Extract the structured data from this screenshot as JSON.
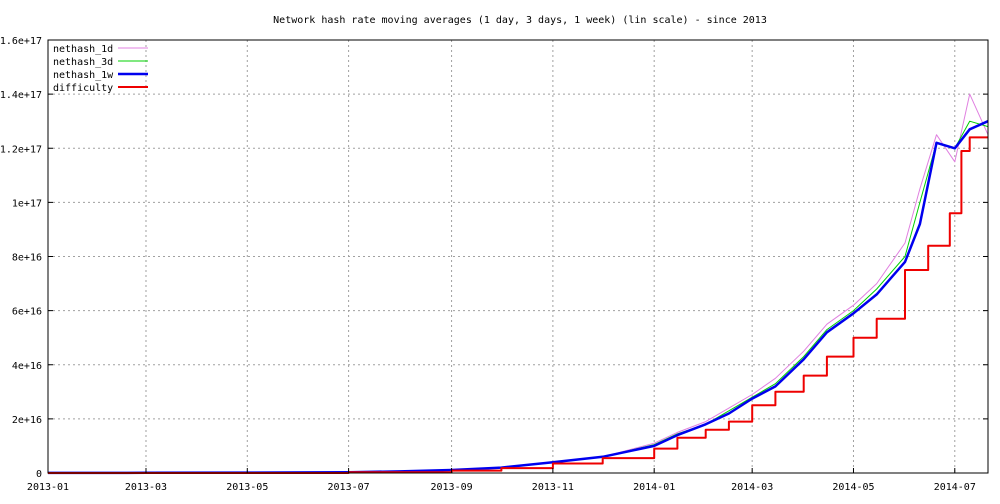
{
  "chart_data": {
    "type": "line",
    "title": "Network hash rate moving averages (1 day, 3 days, 1 week) (lin scale) - since 2013",
    "xlabel": "",
    "ylabel": "",
    "x_ticks": [
      "2013-01",
      "2013-03",
      "2013-05",
      "2013-07",
      "2013-09",
      "2013-11",
      "2014-01",
      "2014-03",
      "2014-05",
      "2014-07"
    ],
    "xlim": [
      "2013-01-01",
      "2014-07-21"
    ],
    "y_ticks": [
      "0",
      "2e+16",
      "4e+16",
      "6e+16",
      "8e+16",
      "1e+17",
      "1.2e+17",
      "1.4e+17",
      "1.6e+17"
    ],
    "ylim": [
      0,
      1.6e+17
    ],
    "grid": true,
    "legend_position": "top-left",
    "series": [
      {
        "name": "nethash_1d",
        "color": "#e080e0",
        "x": [
          "2013-01-01",
          "2013-03-01",
          "2013-05-01",
          "2013-07-01",
          "2013-08-01",
          "2013-09-01",
          "2013-10-01",
          "2013-11-01",
          "2013-12-01",
          "2014-01-01",
          "2014-01-15",
          "2014-02-01",
          "2014-02-15",
          "2014-03-01",
          "2014-03-15",
          "2014-04-01",
          "2014-04-15",
          "2014-05-01",
          "2014-05-15",
          "2014-06-01",
          "2014-06-10",
          "2014-06-20",
          "2014-07-01",
          "2014-07-10",
          "2014-07-21"
        ],
        "values": [
          20000000000000.0,
          60000000000000.0,
          150000000000000.0,
          300000000000000.0,
          600000000000000.0,
          1100000000000000.0,
          2000000000000000.0,
          4000000000000000.0,
          6000000000000000.0,
          1.1e+16,
          1.5e+16,
          1.9e+16,
          2.4e+16,
          2.9e+16,
          3.5e+16,
          4.5e+16,
          5.5e+16,
          6.2e+16,
          7e+16,
          8.5e+16,
          1.05e+17,
          1.25e+17,
          1.15e+17,
          1.4e+17,
          1.25e+17
        ]
      },
      {
        "name": "nethash_3d",
        "color": "#00d000",
        "x": [
          "2013-01-01",
          "2013-03-01",
          "2013-05-01",
          "2013-07-01",
          "2013-08-01",
          "2013-09-01",
          "2013-10-01",
          "2013-11-01",
          "2013-12-01",
          "2014-01-01",
          "2014-01-15",
          "2014-02-01",
          "2014-02-15",
          "2014-03-01",
          "2014-03-15",
          "2014-04-01",
          "2014-04-15",
          "2014-05-01",
          "2014-05-15",
          "2014-06-01",
          "2014-06-10",
          "2014-06-20",
          "2014-07-01",
          "2014-07-10",
          "2014-07-21"
        ],
        "values": [
          20000000000000.0,
          60000000000000.0,
          150000000000000.0,
          300000000000000.0,
          600000000000000.0,
          1100000000000000.0,
          2000000000000000.0,
          4000000000000000.0,
          6000000000000000.0,
          1.05e+16,
          1.45e+16,
          1.8e+16,
          2.3e+16,
          2.8e+16,
          3.3e+16,
          4.3e+16,
          5.3e+16,
          6e+16,
          6.8e+16,
          8e+16,
          1e+17,
          1.22e+17,
          1.2e+17,
          1.3e+17,
          1.28e+17
        ]
      },
      {
        "name": "nethash_1w",
        "color": "#0000ee",
        "x": [
          "2013-01-01",
          "2013-03-01",
          "2013-05-01",
          "2013-07-01",
          "2013-08-01",
          "2013-09-01",
          "2013-10-01",
          "2013-11-01",
          "2013-12-01",
          "2014-01-01",
          "2014-01-15",
          "2014-02-01",
          "2014-02-15",
          "2014-03-01",
          "2014-03-15",
          "2014-04-01",
          "2014-04-15",
          "2014-05-01",
          "2014-05-15",
          "2014-06-01",
          "2014-06-10",
          "2014-06-20",
          "2014-07-01",
          "2014-07-10",
          "2014-07-21"
        ],
        "values": [
          20000000000000.0,
          60000000000000.0,
          150000000000000.0,
          300000000000000.0,
          600000000000000.0,
          1100000000000000.0,
          2000000000000000.0,
          4000000000000000.0,
          6000000000000000.0,
          1e+16,
          1.4e+16,
          1.8e+16,
          2.2e+16,
          2.75e+16,
          3.2e+16,
          4.2e+16,
          5.2e+16,
          5.9e+16,
          6.6e+16,
          7.8e+16,
          9.2e+16,
          1.22e+17,
          1.2e+17,
          1.27e+17,
          1.3e+17
        ]
      },
      {
        "name": "difficulty",
        "color": "#ee0000",
        "step": true,
        "x": [
          "2013-01-01",
          "2013-07-01",
          "2013-09-01",
          "2013-10-01",
          "2013-11-01",
          "2013-12-01",
          "2014-01-01",
          "2014-01-15",
          "2014-02-01",
          "2014-02-15",
          "2014-03-01",
          "2014-03-15",
          "2014-04-01",
          "2014-04-15",
          "2014-05-01",
          "2014-05-15",
          "2014-06-01",
          "2014-06-15",
          "2014-06-28",
          "2014-07-05",
          "2014-07-10",
          "2014-07-21"
        ],
        "values": [
          10000000000000.0,
          300000000000000.0,
          900000000000000.0,
          1800000000000000.0,
          3500000000000000.0,
          5500000000000000.0,
          9000000000000000.0,
          1.3e+16,
          1.6e+16,
          1.9e+16,
          2.5e+16,
          3e+16,
          3.6e+16,
          4.3e+16,
          5e+16,
          5.7e+16,
          7.5e+16,
          8.4e+16,
          9.6e+16,
          1.19e+17,
          1.24e+17,
          1.24e+17
        ]
      }
    ]
  }
}
